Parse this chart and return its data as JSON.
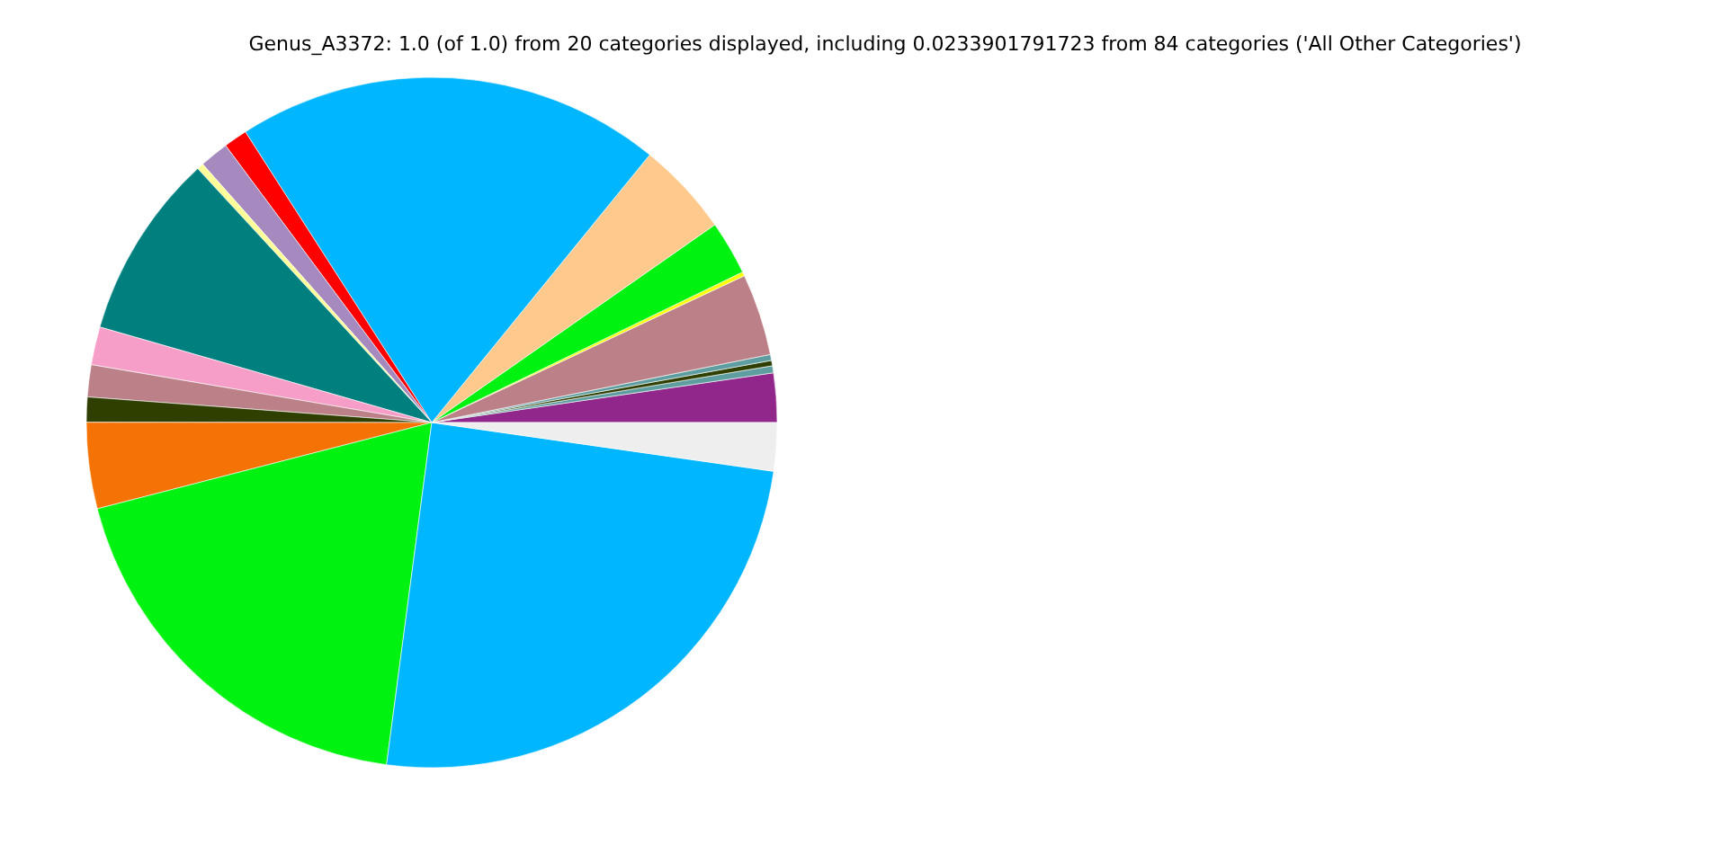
{
  "chart_data": {
    "type": "pie",
    "title": "Genus_A3372: 1.0 (of 1.0) from 20 categories displayed, including 0.0233901791723 from 84 categories ('All Other Categories')",
    "categories": [
      null,
      null,
      null,
      null,
      null,
      null,
      null,
      null,
      null,
      null,
      null,
      null,
      null,
      null,
      null,
      null,
      null,
      null,
      null,
      null
    ],
    "values": [
      2.3,
      0.33,
      0.25,
      0.28,
      3.83,
      0.19,
      2.53,
      4.42,
      19.94,
      1.11,
      1.36,
      0.31,
      8.69,
      1.78,
      1.5,
      1.17,
      4.03,
      18.89,
      24.83,
      2.26
    ],
    "colors": [
      "#91278b",
      "#5f9ea0",
      "#2f3f00",
      "#5f9ea0",
      "#bc8088",
      "#ffff00",
      "#00f210",
      "#fec98c",
      "#00b6ff",
      "#ff0000",
      "#a68abf",
      "#ffff99",
      "#007f7f",
      "#f69dc8",
      "#bc8088",
      "#2f3f00",
      "#f47304",
      "#00f210",
      "#00b6ff",
      "#eeeeee"
    ]
  }
}
